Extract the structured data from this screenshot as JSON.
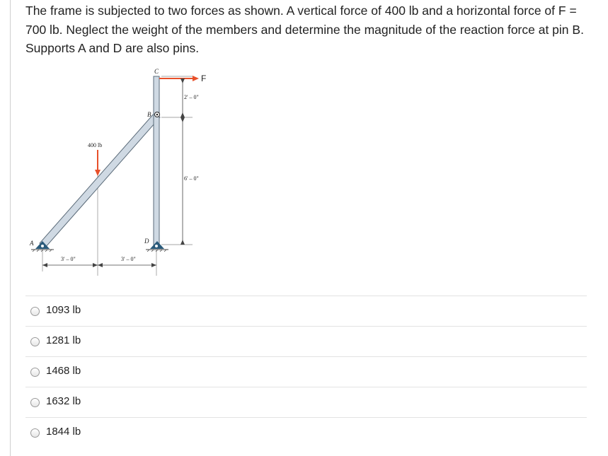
{
  "question": {
    "text": "The frame is subjected to two forces as shown. A vertical force of 400 lb and a horizontal force of F = 700 lb. Neglect the weight of the members and determine the magnitude of the reaction force at pin B. Supports A and D are also pins."
  },
  "figure": {
    "labels": {
      "point_a": "A",
      "point_b": "B",
      "point_c": "C",
      "point_d": "D",
      "force_f": "F",
      "force_400": "400 lb",
      "dim_top": "2' – 0\"",
      "dim_right": "6' – 0\"",
      "dim_left": "3' – 0\"",
      "dim_mid": "3' – 0\""
    },
    "colors": {
      "member_fill": "#cfd9e3",
      "member_stroke": "#5a6a78",
      "force_arrow": "#e8502a",
      "support": "#2a5a7a"
    }
  },
  "answers": [
    {
      "label": "1093 lb"
    },
    {
      "label": "1281 lb"
    },
    {
      "label": "1468 lb"
    },
    {
      "label": "1632 lb"
    },
    {
      "label": "1844 lb"
    }
  ]
}
